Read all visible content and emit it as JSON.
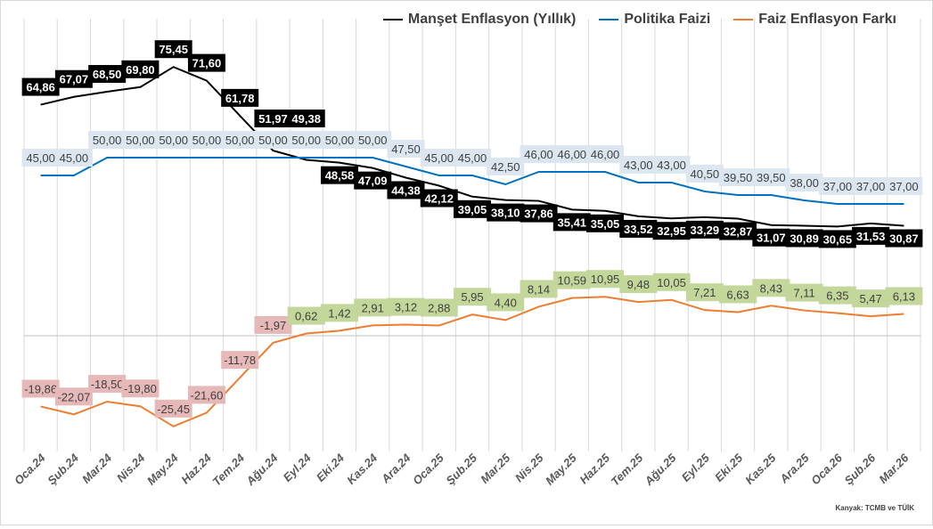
{
  "chart_data": {
    "type": "line",
    "categories": [
      "Oca.24",
      "Şub.24",
      "Mar.24",
      "Nis.24",
      "May.24",
      "Haz.24",
      "Tem.24",
      "Ağu.24",
      "Eyl.24",
      "Eki.24",
      "Kas.24",
      "Ara.24",
      "Oca.25",
      "Şub.25",
      "Mar.25",
      "Nis.25",
      "May.25",
      "Haz.25",
      "Tem.25",
      "Ağu.25",
      "Eyl.25",
      "Eki.25",
      "Kas.25",
      "Ara.25",
      "Oca.26",
      "Şub.26",
      "Mar.26"
    ],
    "series": [
      {
        "name": "Manşet Enflasyon (Yıllık)",
        "color": "#000000",
        "label_bg": "#000000",
        "label_color": "#ffffff",
        "values": [
          64.86,
          67.07,
          68.5,
          69.8,
          75.45,
          71.6,
          61.78,
          51.97,
          49.38,
          48.58,
          47.09,
          44.38,
          42.12,
          39.05,
          38.1,
          37.86,
          35.41,
          35.05,
          33.52,
          32.95,
          33.29,
          32.87,
          31.07,
          30.89,
          30.65,
          31.53,
          30.87
        ]
      },
      {
        "name": "Politika Faizi",
        "color": "#0070c0",
        "label_bg": "#dce6f1",
        "label_color": "#404040",
        "values": [
          45,
          45,
          50,
          50,
          50,
          50,
          50,
          50,
          50,
          50,
          50,
          47.5,
          45,
          45,
          42.5,
          46,
          46,
          46,
          43,
          43,
          40.5,
          39.5,
          39.5,
          38,
          37,
          37,
          37
        ]
      },
      {
        "name": "Faiz Enflasyon Farkı",
        "color": "#ed7d31",
        "label_bg_positive": "#c4d79b",
        "label_bg_negative": "#e6b8b7",
        "label_color": "#404040",
        "values": [
          -19.86,
          -22.07,
          -18.5,
          -19.8,
          -25.45,
          -21.6,
          -11.78,
          -1.97,
          0.62,
          1.42,
          2.91,
          3.12,
          2.88,
          5.95,
          4.4,
          8.14,
          10.59,
          10.95,
          9.48,
          10.05,
          7.21,
          6.63,
          8.43,
          7.11,
          6.35,
          5.47,
          6.13
        ]
      }
    ],
    "ylim": [
      -31,
      89
    ],
    "decimal_separator": ",",
    "grid": "vertical",
    "legend": "top-right",
    "source": "Kanyak: TCMB ve TÜİK"
  }
}
